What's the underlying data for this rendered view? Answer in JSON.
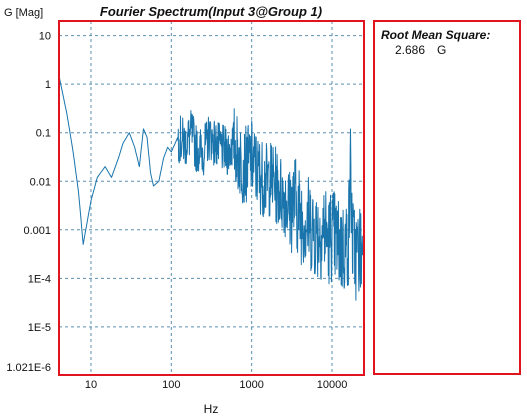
{
  "chart_data": {
    "type": "line",
    "title": "Fourier Spectrum(Input 3@Group 1)",
    "ylabel": "G [Mag]",
    "xlabel": "Hz",
    "x_scale": "log",
    "y_scale": "log",
    "xlim": [
      4,
      25000
    ],
    "ylim": [
      1.021e-06,
      20
    ],
    "x_ticks": [
      10,
      100,
      1000,
      10000
    ],
    "x_tick_labels": [
      "10",
      "100",
      "1000",
      "10000"
    ],
    "y_ticks": [
      10,
      1,
      0.1,
      0.01,
      0.001,
      0.0001,
      1e-05,
      1.021e-06
    ],
    "y_tick_labels": [
      "10",
      "1",
      "0.1",
      "0.01",
      "0.001",
      "1E-4",
      "1E-5",
      "1.021E-6"
    ],
    "grid": true,
    "colors": {
      "line": "#1a75ad",
      "frame": "#e0141e",
      "grid": "#5a8fb0"
    },
    "series": [
      {
        "x": [
          4,
          5,
          6,
          7,
          8,
          9,
          10,
          12,
          15,
          18,
          22,
          25,
          30,
          35,
          40,
          45,
          50,
          55,
          60,
          70,
          80,
          90,
          100,
          120,
          150,
          180,
          200,
          250,
          300,
          350,
          400,
          500,
          600,
          700,
          800,
          1000,
          1200,
          1500,
          1800,
          2000,
          2500,
          3000,
          3500,
          4000,
          5000,
          6000,
          7000,
          8000,
          9000,
          10000,
          12000,
          14000,
          16000,
          17000,
          18000,
          20000,
          22000,
          24000
        ],
        "y": [
          1.5,
          0.25,
          0.04,
          0.006,
          0.0005,
          0.0015,
          0.004,
          0.012,
          0.02,
          0.012,
          0.03,
          0.06,
          0.1,
          0.05,
          0.02,
          0.12,
          0.08,
          0.015,
          0.008,
          0.01,
          0.03,
          0.05,
          0.04,
          0.08,
          0.06,
          0.1,
          0.05,
          0.04,
          0.09,
          0.06,
          0.05,
          0.04,
          0.06,
          0.03,
          0.02,
          0.03,
          0.015,
          0.01,
          0.012,
          0.008,
          0.005,
          0.003,
          0.004,
          0.002,
          0.0015,
          0.001,
          0.0008,
          0.0012,
          0.0006,
          0.0009,
          0.0005,
          0.0004,
          0.0006,
          0.02,
          0.0005,
          0.0003,
          0.0004,
          0.0003
        ]
      }
    ]
  },
  "rms": {
    "title": "Root Mean Square:",
    "value": "2.686",
    "unit": "G"
  }
}
